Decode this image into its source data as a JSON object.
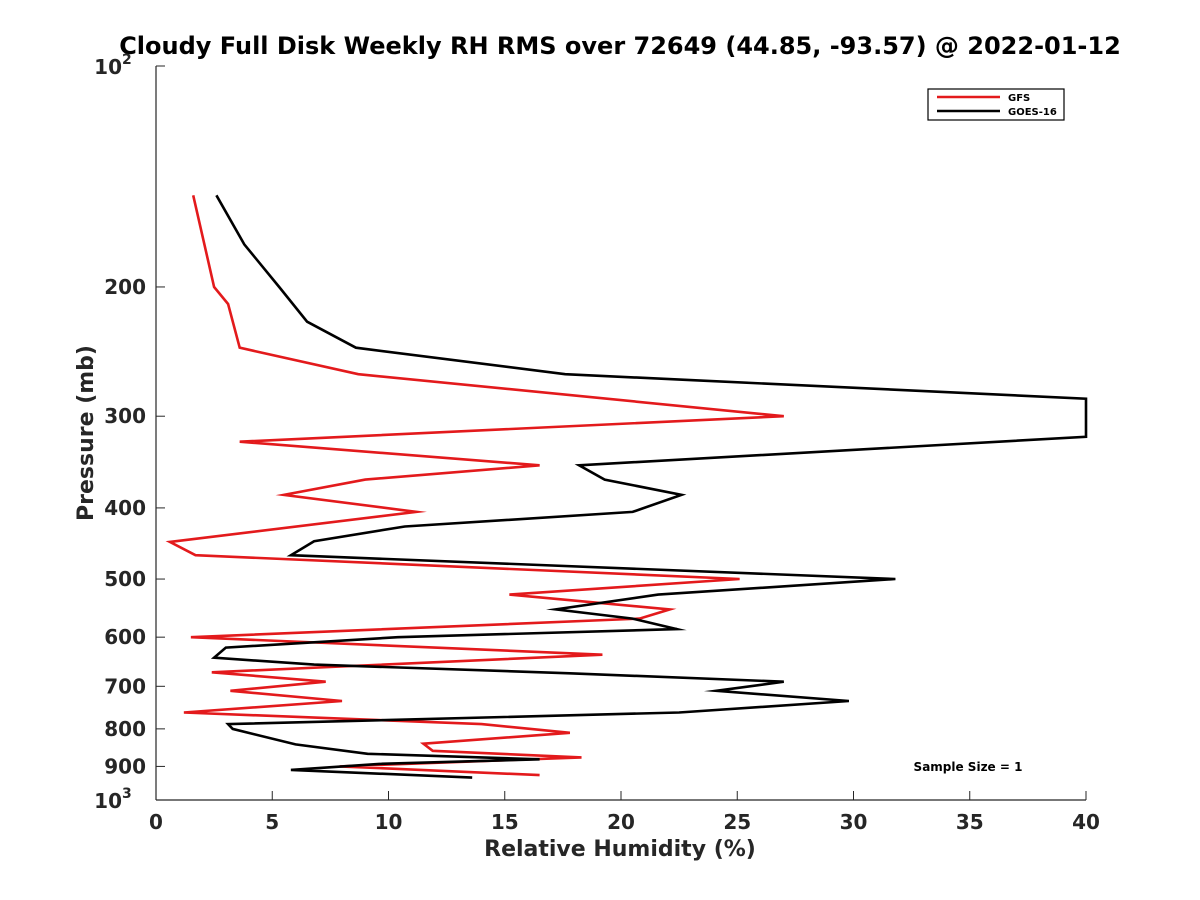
{
  "chart_data": {
    "type": "line",
    "title": "Cloudy Full Disk Weekly RH RMS over 72649 (44.85, -93.57) @ 2022-01-12",
    "xlabel": "Relative Humidity (%)",
    "ylabel": "Pressure (mb)",
    "xlim": [
      0,
      40
    ],
    "ylim": [
      1000,
      100
    ],
    "yscale": "log",
    "y_reversed": true,
    "x_ticks": [
      0,
      5,
      10,
      15,
      20,
      25,
      30,
      35,
      40
    ],
    "y_ticks": [
      {
        "value": 100,
        "base": "10",
        "exp": "2"
      },
      {
        "value": 200,
        "label": "200"
      },
      {
        "value": 300,
        "label": "300"
      },
      {
        "value": 400,
        "label": "400"
      },
      {
        "value": 500,
        "label": "500"
      },
      {
        "value": 600,
        "label": "600"
      },
      {
        "value": 700,
        "label": "700"
      },
      {
        "value": 800,
        "label": "800"
      },
      {
        "value": 900,
        "label": "900"
      },
      {
        "value": 1000,
        "base": "10",
        "exp": "3"
      }
    ],
    "grid": false,
    "legend_position": "top-right",
    "annotation": "Sample Size = 1",
    "series": [
      {
        "name": "GFS",
        "color": "#e31a1c",
        "x": [
          1.6,
          2.5,
          3.1,
          3.6,
          8.7,
          27.0,
          3.6,
          16.5,
          9.0,
          5.5,
          11.2,
          0.6,
          1.7,
          25.1,
          15.2,
          22.1,
          20.8,
          1.5,
          19.2,
          2.4,
          7.3,
          3.2,
          8.0,
          1.2,
          14.0,
          17.8,
          11.5,
          11.9,
          18.3,
          7.9,
          16.5
        ],
        "y": [
          150,
          200,
          211,
          242,
          263,
          300,
          325,
          350,
          366,
          384,
          405,
          445,
          464,
          500,
          525,
          550,
          566,
          600,
          634,
          670,
          690,
          710,
          733,
          760,
          788,
          810,
          838,
          857,
          875,
          900,
          925
        ]
      },
      {
        "name": "GOES-16",
        "color": "#000000",
        "x": [
          2.6,
          3.8,
          5.3,
          6.5,
          8.6,
          17.6,
          40.0,
          40.0,
          18.2,
          19.3,
          22.6,
          20.5,
          10.7,
          6.8,
          5.8,
          31.8,
          21.6,
          17.2,
          20.5,
          22.4,
          10.4,
          3.0,
          2.5,
          6.8,
          17.8,
          27.0,
          24.1,
          29.8,
          22.5,
          3.1,
          3.3,
          6.0,
          9.1,
          16.5,
          9.6,
          5.8,
          13.6
        ],
        "y": [
          150,
          175,
          200,
          223,
          242,
          263,
          284,
          320,
          350,
          366,
          384,
          405,
          424,
          444,
          464,
          500,
          525,
          550,
          566,
          585,
          600,
          620,
          640,
          654,
          672,
          690,
          710,
          733,
          760,
          788,
          800,
          840,
          865,
          880,
          893,
          910,
          932
        ]
      }
    ]
  }
}
